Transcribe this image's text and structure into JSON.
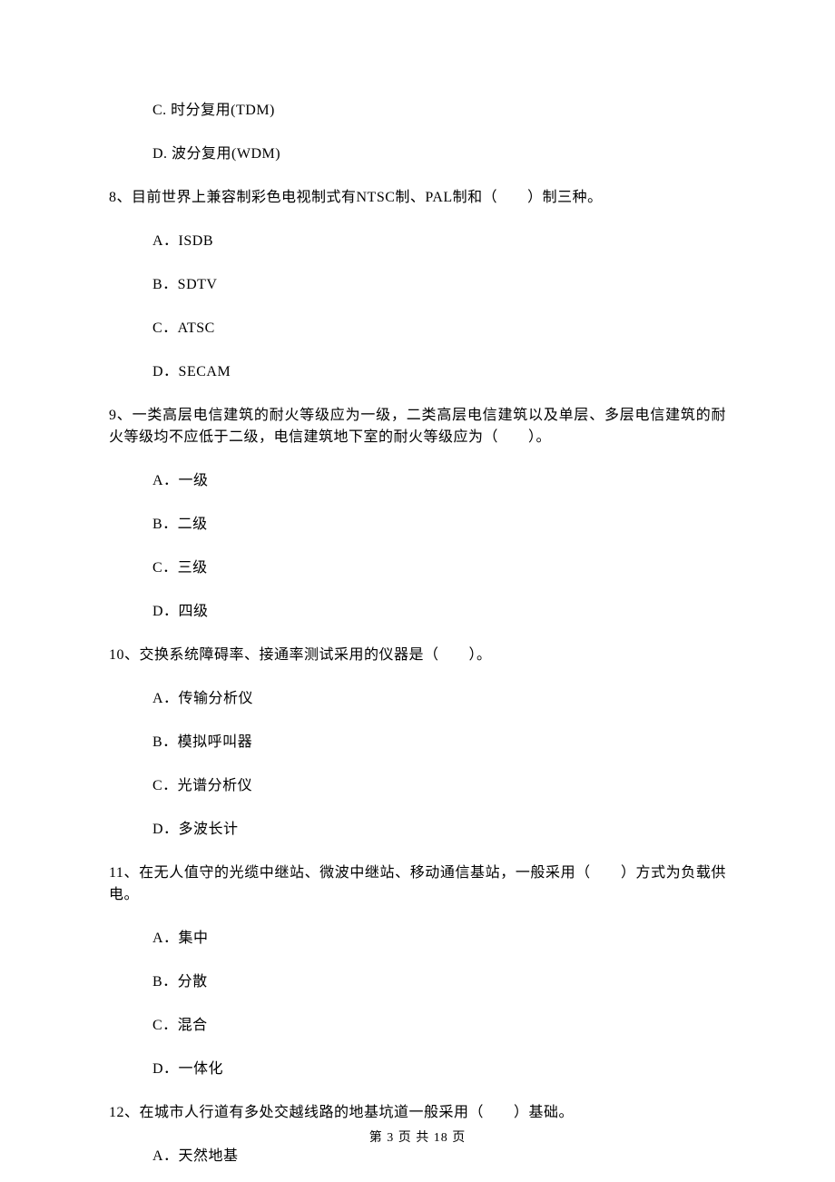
{
  "orphan_options": {
    "c": "C. 时分复用(TDM)",
    "d": "D. 波分复用(WDM)"
  },
  "q8": {
    "stem": "8、目前世界上兼容制彩色电视制式有NTSC制、PAL制和（　　）制三种。",
    "a": "A．ISDB",
    "b": "B．SDTV",
    "c": "C．ATSC",
    "d": "D．SECAM"
  },
  "q9": {
    "stem": "9、一类高层电信建筑的耐火等级应为一级，二类高层电信建筑以及单层、多层电信建筑的耐火等级均不应低于二级，电信建筑地下室的耐火等级应为（　　）。",
    "a": "A．一级",
    "b": "B．二级",
    "c": "C．三级",
    "d": "D．四级"
  },
  "q10": {
    "stem": "10、交换系统障碍率、接通率测试采用的仪器是（　　）。",
    "a": "A．传输分析仪",
    "b": "B．模拟呼叫器",
    "c": "C．光谱分析仪",
    "d": "D．多波长计"
  },
  "q11": {
    "stem": "11、在无人值守的光缆中继站、微波中继站、移动通信基站，一般采用（　　）方式为负载供电。",
    "a": "A．集中",
    "b": "B．分散",
    "c": "C．混合",
    "d": "D．一体化"
  },
  "q12": {
    "stem": "12、在城市人行道有多处交越线路的地基坑道一般采用（　　）基础。",
    "a": "A．天然地基"
  },
  "footer": "第 3 页 共 18 页"
}
